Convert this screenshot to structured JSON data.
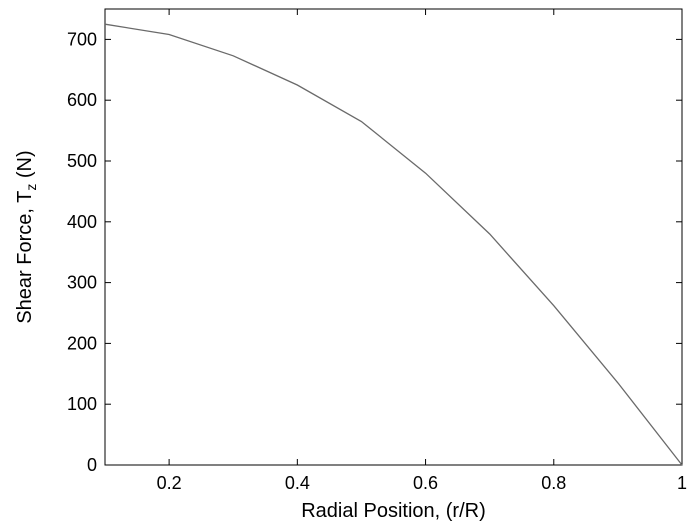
{
  "chart_data": {
    "type": "line",
    "title": "",
    "xlabel": "Radial Position, (r/R)",
    "ylabel": {
      "main": "Shear Force, T",
      "sub": "z",
      "unit": " (N)"
    },
    "xlim": [
      0.1,
      1.0
    ],
    "ylim": [
      0,
      750
    ],
    "xticks": [
      0.2,
      0.4,
      0.6,
      0.8,
      1.0
    ],
    "xtick_labels": [
      "0.2",
      "0.4",
      "0.6",
      "0.8",
      "1"
    ],
    "yticks": [
      0,
      100,
      200,
      300,
      400,
      500,
      600,
      700
    ],
    "ytick_labels": [
      "0",
      "100",
      "200",
      "300",
      "400",
      "500",
      "600",
      "700"
    ],
    "grid": false,
    "series": [
      {
        "color": "#6a6a6a",
        "x": [
          0.1,
          0.2,
          0.3,
          0.4,
          0.5,
          0.6,
          0.7,
          0.8,
          0.9,
          1.0
        ],
        "y": [
          725,
          708,
          673,
          625,
          565,
          480,
          380,
          262,
          135,
          0
        ]
      }
    ]
  }
}
